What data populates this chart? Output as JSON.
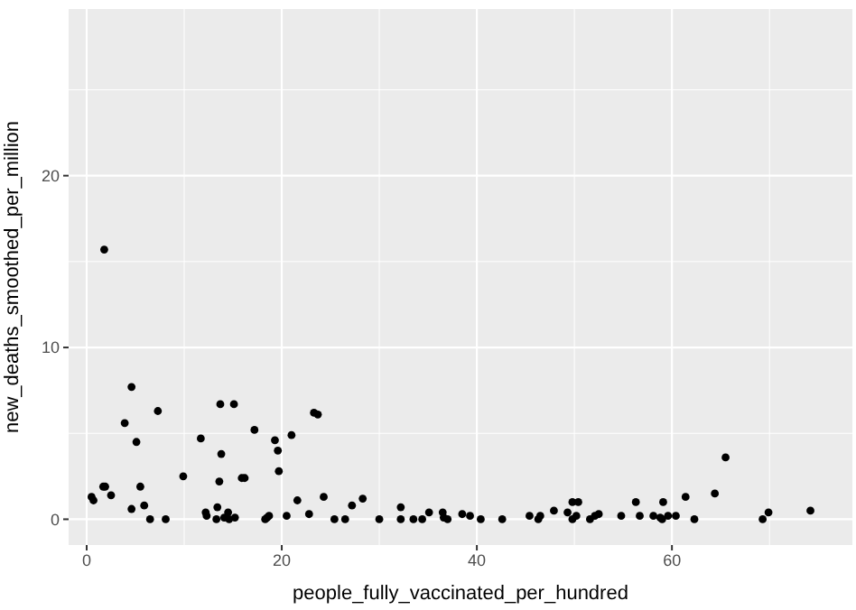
{
  "chart_data": {
    "type": "scatter",
    "xlabel": "people_fully_vaccinated_per_hundred",
    "ylabel": "new_deaths_smoothed_per_million",
    "xlim": [
      -1.85,
      78.5
    ],
    "ylim": [
      -1.5,
      29.7
    ],
    "xticks": [
      0,
      20,
      40,
      60
    ],
    "yticks": [
      0,
      10,
      20
    ],
    "grid": true,
    "marker": "circle",
    "series": [
      {
        "color": "#000000",
        "x": [
          1.8,
          4.6,
          3.9,
          5.1,
          7.3,
          13.7,
          15.1,
          11.7,
          13.8,
          17.2,
          19.3,
          19.6,
          21.0,
          19.7,
          23.3,
          23.7,
          9.9,
          13.6,
          15.9,
          16.2,
          0.5,
          0.7,
          1.7,
          1.9,
          2.5,
          4.6,
          5.5,
          5.9,
          6.5,
          8.1,
          12.2,
          12.3,
          13.4,
          13.3,
          14.1,
          14.5,
          14.6,
          15.2,
          18.3,
          18.5,
          18.7,
          20.5,
          21.6,
          22.8,
          24.3,
          25.4,
          26.5,
          27.2,
          28.3,
          30.0,
          32.2,
          32.2,
          33.5,
          34.4,
          35.1,
          36.5,
          36.6,
          37.0,
          38.5,
          39.3,
          40.4,
          42.6,
          45.4,
          46.3,
          46.5,
          47.9,
          49.3,
          49.8,
          50.4,
          49.8,
          50.2,
          51.6,
          52.1,
          52.5,
          54.8,
          56.3,
          56.7,
          58.1,
          58.8,
          59.0,
          59.6,
          60.4,
          59.1,
          61.4,
          62.3,
          64.4,
          65.5,
          69.3,
          69.9,
          74.2
        ],
        "values": [
          15.7,
          7.7,
          5.6,
          4.5,
          6.3,
          6.7,
          6.7,
          4.7,
          3.8,
          5.2,
          4.6,
          4.0,
          4.9,
          2.8,
          6.2,
          6.1,
          2.5,
          2.2,
          2.4,
          2.4,
          1.3,
          1.1,
          1.9,
          1.9,
          1.4,
          0.6,
          1.9,
          0.8,
          0,
          0,
          0.4,
          0.2,
          0.7,
          0,
          0.1,
          0.4,
          0,
          0.1,
          0,
          0.1,
          0.2,
          0.2,
          1.1,
          0.3,
          1.3,
          0,
          0,
          0.8,
          1.2,
          0,
          0.7,
          0,
          0,
          0,
          0.4,
          0.4,
          0.1,
          0,
          0.3,
          0.2,
          0,
          0,
          0.2,
          0,
          0.2,
          0.5,
          0.4,
          1.0,
          1.0,
          0,
          0.2,
          0,
          0.2,
          0.3,
          0.2,
          1.0,
          0.2,
          0.2,
          0.1,
          0,
          0.2,
          0.2,
          1.0,
          1.3,
          0,
          1.5,
          3.6,
          0,
          0.4,
          0.5
        ]
      }
    ]
  }
}
